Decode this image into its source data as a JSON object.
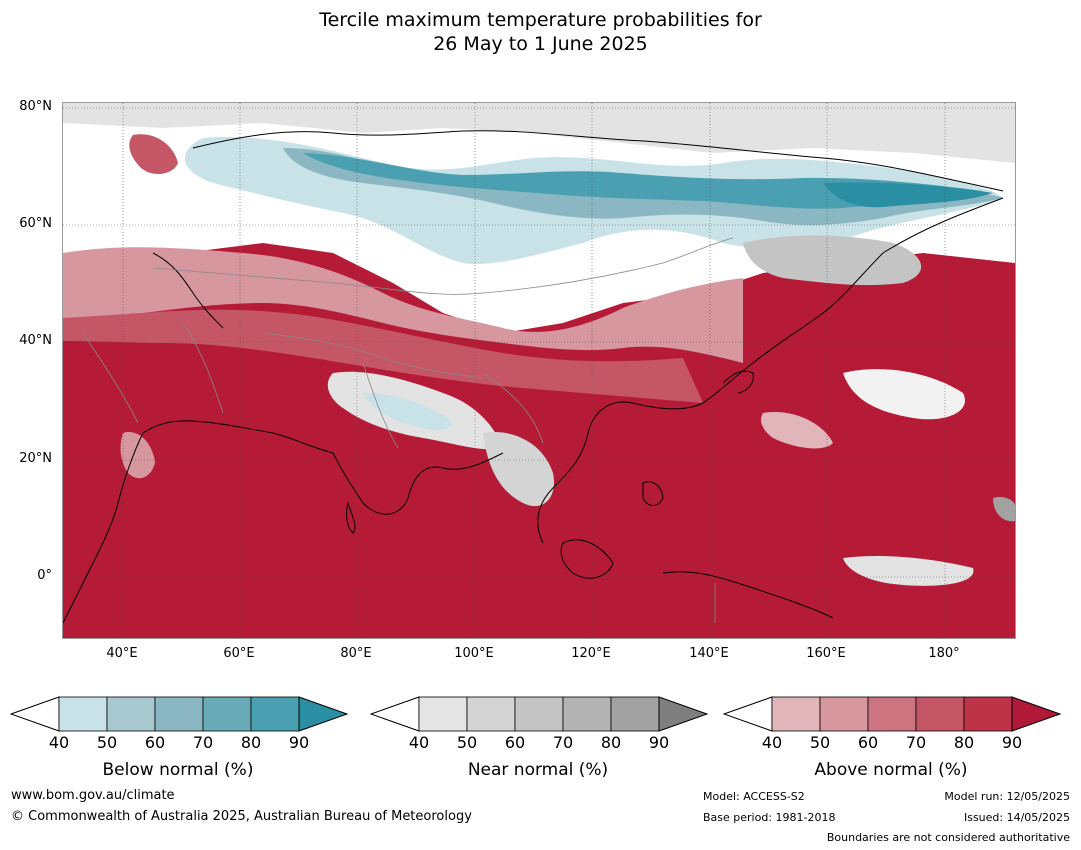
{
  "title_line1": "Tercile maximum temperature probabilities for",
  "title_line2": "26 May to 1 June 2025",
  "lat_labels": [
    "80°N",
    "60°N",
    "40°N",
    "20°N",
    "0°"
  ],
  "lon_labels": [
    "40°E",
    "60°E",
    "80°E",
    "100°E",
    "120°E",
    "140°E",
    "160°E",
    "180°"
  ],
  "colorbars": [
    {
      "label": "Below normal (%)",
      "ticks": [
        "40",
        "50",
        "60",
        "70",
        "80",
        "90"
      ],
      "colors": [
        "#c9e2e8",
        "#a8c8cf",
        "#8ab7c2",
        "#6aabb8",
        "#4a9fb0",
        "#2a8fa3"
      ]
    },
    {
      "label": "Near normal (%)",
      "ticks": [
        "40",
        "50",
        "60",
        "70",
        "80",
        "90"
      ],
      "colors": [
        "#e5e5e5",
        "#d4d4d4",
        "#c4c4c4",
        "#b3b3b3",
        "#a2a2a2",
        "#7f7f7f"
      ]
    },
    {
      "label": "Above normal (%)",
      "ticks": [
        "40",
        "50",
        "60",
        "70",
        "80",
        "90"
      ],
      "colors": [
        "#e0b6bb",
        "#d6979f",
        "#cc7580",
        "#c55665",
        "#bd3448",
        "#b01a38"
      ]
    }
  ],
  "footer": {
    "website": "www.bom.gov.au/climate",
    "copyright": "© Commonwealth of Australia 2025, Australian Bureau of Meteorology",
    "model": "Model: ACCESS-S2",
    "base_period": "Base period: 1981-2018",
    "model_run": "Model run: 12/05/2025",
    "issued": "Issued: 14/05/2025",
    "disclaimer": "Boundaries are not considered authoritative"
  }
}
